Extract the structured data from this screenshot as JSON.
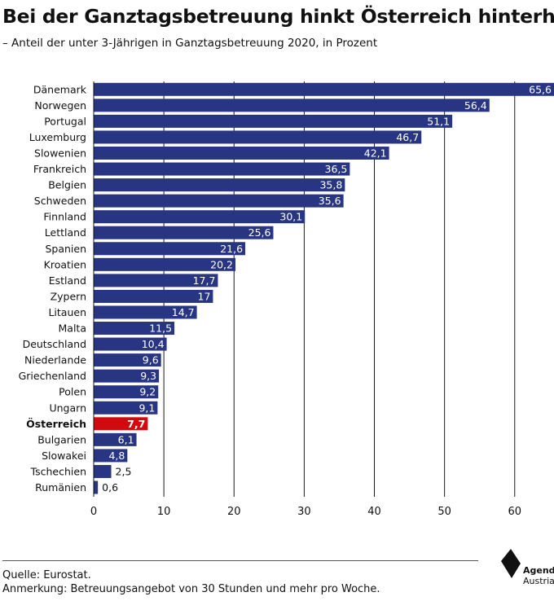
{
  "title": "Bei der Ganztagsbetreuung hinkt Österreich hinterher",
  "subtitle": "– Anteil der unter 3-Jährigen in Ganztagsbetreuung 2020, in Prozent",
  "footer": {
    "source": "Quelle: Eurostat.",
    "note": "Anmerkung: Betreuungsangebot von 30 Stunden und mehr pro Woche."
  },
  "logo": {
    "line1": "Agenda",
    "line2": "Austria",
    "icon": "agenda-austria-logo-icon"
  },
  "chart_data": {
    "type": "bar",
    "orientation": "horizontal",
    "categories": [
      "Dänemark",
      "Norwegen",
      "Portugal",
      "Luxemburg",
      "Slowenien",
      "Frankreich",
      "Belgien",
      "Schweden",
      "Finnland",
      "Lettland",
      "Spanien",
      "Kroatien",
      "Estland",
      "Zypern",
      "Litauen",
      "Malta",
      "Deutschland",
      "Niederlande",
      "Griechenland",
      "Polen",
      "Ungarn",
      "Österreich",
      "Bulgarien",
      "Slowakei",
      "Tschechien",
      "Rumänien"
    ],
    "values": [
      65.6,
      56.4,
      51.1,
      46.7,
      42.1,
      36.5,
      35.8,
      35.6,
      30.1,
      25.6,
      21.6,
      20.2,
      17.7,
      17,
      14.7,
      11.5,
      10.4,
      9.6,
      9.3,
      9.2,
      9.1,
      7.7,
      6.1,
      4.8,
      2.5,
      0.6
    ],
    "value_labels": [
      "65,6",
      "56,4",
      "51,1",
      "46,7",
      "42,1",
      "36,5",
      "35,8",
      "35,6",
      "30,1",
      "25,6",
      "21,6",
      "20,2",
      "17,7",
      "17",
      "14,7",
      "11,5",
      "10,4",
      "9,6",
      "9,3",
      "9,2",
      "9,1",
      "7,7",
      "6,1",
      "4,8",
      "2,5",
      "0,6"
    ],
    "highlight": "Österreich",
    "xlim": [
      0,
      65.6
    ],
    "xticks": [
      0,
      10,
      20,
      30,
      40,
      50,
      60
    ],
    "grid": true,
    "colors": {
      "bar": "#283583",
      "highlight": "#d10a10",
      "grid": "#1a1a1a"
    }
  }
}
